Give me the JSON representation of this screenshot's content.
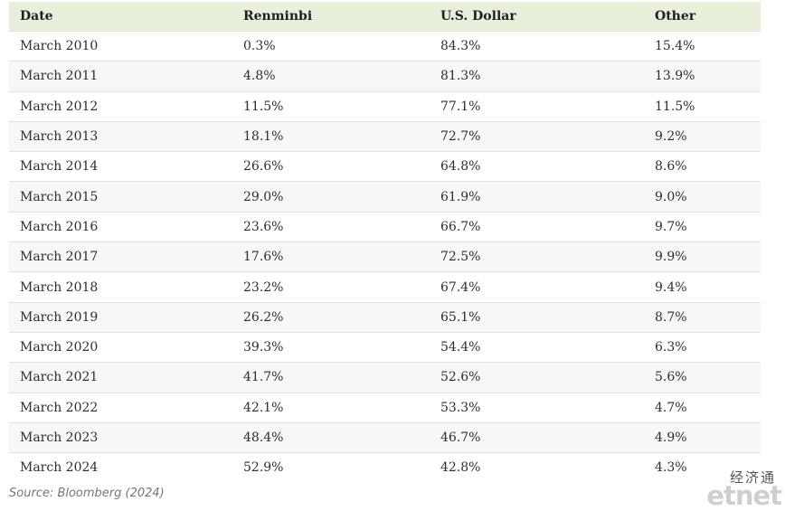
{
  "table": {
    "headers": [
      "Date",
      "Renminbi",
      "U.S. Dollar",
      "Other"
    ],
    "rows": [
      [
        "March 2010",
        "0.3%",
        "84.3%",
        "15.4%"
      ],
      [
        "March 2011",
        "4.8%",
        "81.3%",
        "13.9%"
      ],
      [
        "March 2012",
        "11.5%",
        "77.1%",
        "11.5%"
      ],
      [
        "March 2013",
        "18.1%",
        "72.7%",
        "9.2%"
      ],
      [
        "March 2014",
        "26.6%",
        "64.8%",
        "8.6%"
      ],
      [
        "March 2015",
        "29.0%",
        "61.9%",
        "9.0%"
      ],
      [
        "March 2016",
        "23.6%",
        "66.7%",
        "9.7%"
      ],
      [
        "March 2017",
        "17.6%",
        "72.5%",
        "9.9%"
      ],
      [
        "March 2018",
        "23.2%",
        "67.4%",
        "9.4%"
      ],
      [
        "March 2019",
        "26.2%",
        "65.1%",
        "8.7%"
      ],
      [
        "March 2020",
        "39.3%",
        "54.4%",
        "6.3%"
      ],
      [
        "March 2021",
        "41.7%",
        "52.6%",
        "5.6%"
      ],
      [
        "March 2022",
        "42.1%",
        "53.3%",
        "4.7%"
      ],
      [
        "March 2023",
        "48.4%",
        "46.7%",
        "4.9%"
      ],
      [
        "March 2024",
        "52.9%",
        "42.8%",
        "4.3%"
      ]
    ]
  },
  "source": "Source: Bloomberg (2024)",
  "logo": {
    "cn": "经济通",
    "en": "etnet"
  },
  "colors": {
    "header_bg": "#e8f0dc",
    "stripe_bg": "#f7f7f7",
    "row_border": "#e1e1e1"
  }
}
